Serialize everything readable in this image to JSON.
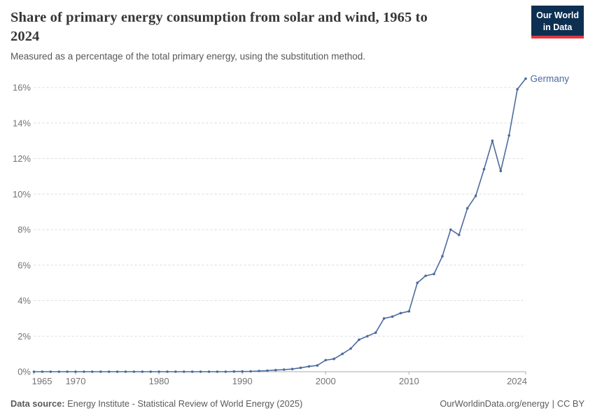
{
  "header": {
    "title": "Share of primary energy consumption from solar and wind, 1965 to 2024",
    "subtitle": "Measured as a percentage of the total primary energy, using the substitution method.",
    "logo": {
      "line1": "Our World",
      "line2": "in Data",
      "bg_color": "#0d2f51",
      "accent_color": "#e0373e"
    }
  },
  "chart_data": {
    "type": "line",
    "title": "Share of primary energy consumption from solar and wind, 1965 to 2024",
    "subtitle": "Measured as a percentage of the total primary energy, using the substitution method.",
    "xlabel": "",
    "ylabel": "",
    "xlim": [
      1965,
      2024
    ],
    "ylim": [
      0,
      16.6
    ],
    "x_ticks": [
      1965,
      1970,
      1980,
      1990,
      2000,
      2010,
      2024
    ],
    "y_ticks": [
      0,
      2,
      4,
      6,
      8,
      10,
      12,
      14,
      16
    ],
    "y_suffix": "%",
    "grid": "horizontal-dashed",
    "legend_position": "end-of-line",
    "series": [
      {
        "name": "Germany",
        "color": "#4c6b9e",
        "points": [
          [
            1965,
            0
          ],
          [
            1966,
            0
          ],
          [
            1967,
            0
          ],
          [
            1968,
            0
          ],
          [
            1969,
            0
          ],
          [
            1970,
            0
          ],
          [
            1971,
            0
          ],
          [
            1972,
            0
          ],
          [
            1973,
            0
          ],
          [
            1974,
            0
          ],
          [
            1975,
            0
          ],
          [
            1976,
            0
          ],
          [
            1977,
            0
          ],
          [
            1978,
            0
          ],
          [
            1979,
            0
          ],
          [
            1980,
            0
          ],
          [
            1981,
            0
          ],
          [
            1982,
            0
          ],
          [
            1983,
            0
          ],
          [
            1984,
            0
          ],
          [
            1985,
            0
          ],
          [
            1986,
            0
          ],
          [
            1987,
            0
          ],
          [
            1988,
            0
          ],
          [
            1989,
            0.01
          ],
          [
            1990,
            0.01
          ],
          [
            1991,
            0.02
          ],
          [
            1992,
            0.04
          ],
          [
            1993,
            0.06
          ],
          [
            1994,
            0.09
          ],
          [
            1995,
            0.12
          ],
          [
            1996,
            0.15
          ],
          [
            1997,
            0.22
          ],
          [
            1998,
            0.3
          ],
          [
            1999,
            0.35
          ],
          [
            2000,
            0.65
          ],
          [
            2001,
            0.72
          ],
          [
            2002,
            1.0
          ],
          [
            2003,
            1.3
          ],
          [
            2004,
            1.8
          ],
          [
            2005,
            2.0
          ],
          [
            2006,
            2.2
          ],
          [
            2007,
            3.0
          ],
          [
            2008,
            3.1
          ],
          [
            2009,
            3.3
          ],
          [
            2010,
            3.4
          ],
          [
            2011,
            5.0
          ],
          [
            2012,
            5.4
          ],
          [
            2013,
            5.5
          ],
          [
            2014,
            6.5
          ],
          [
            2015,
            8.0
          ],
          [
            2016,
            7.7
          ],
          [
            2017,
            9.2
          ],
          [
            2018,
            9.9
          ],
          [
            2019,
            11.4
          ],
          [
            2020,
            13.0
          ],
          [
            2021,
            11.3
          ],
          [
            2022,
            13.3
          ],
          [
            2023,
            15.9
          ],
          [
            2024,
            16.5
          ]
        ]
      }
    ]
  },
  "footer": {
    "source_label": "Data source:",
    "source_text": "Energy Institute - Statistical Review of World Energy (2025)",
    "site_link": "OurWorldinData.org/energy",
    "separator": "|",
    "license": "CC BY"
  }
}
